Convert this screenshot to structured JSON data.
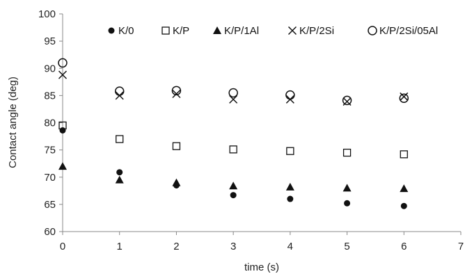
{
  "chart_data": {
    "type": "scatter",
    "xlabel": "time (s)",
    "ylabel": "Contact angle (deg)",
    "xlim": [
      0,
      7
    ],
    "ylim": [
      60,
      100
    ],
    "xticks": [
      "0",
      "1",
      "2",
      "3",
      "4",
      "5",
      "6",
      "7"
    ],
    "yticks": [
      "60",
      "65",
      "70",
      "75",
      "80",
      "85",
      "90",
      "95",
      "100"
    ],
    "grid": false,
    "legend_position": "top",
    "x": [
      0,
      1,
      2,
      3,
      4,
      5,
      6
    ],
    "series": [
      {
        "name": "K/0",
        "marker": "filled-circle",
        "color": "#111111",
        "values": [
          78.6,
          70.9,
          68.5,
          66.7,
          66.0,
          65.2,
          64.7
        ]
      },
      {
        "name": "K/P",
        "marker": "open-square",
        "color": "#111111",
        "values": [
          79.5,
          77.0,
          75.7,
          75.1,
          74.8,
          74.5,
          74.2
        ]
      },
      {
        "name": "K/P/1Al",
        "marker": "filled-triangle",
        "color": "#111111",
        "values": [
          72.0,
          69.5,
          69.0,
          68.4,
          68.2,
          68.0,
          67.9
        ]
      },
      {
        "name": "K/P/2Si",
        "marker": "cross",
        "color": "#111111",
        "values": [
          88.8,
          85.0,
          85.3,
          84.3,
          84.3,
          83.9,
          84.8
        ]
      },
      {
        "name": "K/P/2Si/05Al",
        "marker": "open-circle",
        "color": "#111111",
        "values": [
          91.0,
          85.8,
          85.9,
          85.5,
          85.1,
          84.1,
          84.5
        ]
      }
    ]
  }
}
